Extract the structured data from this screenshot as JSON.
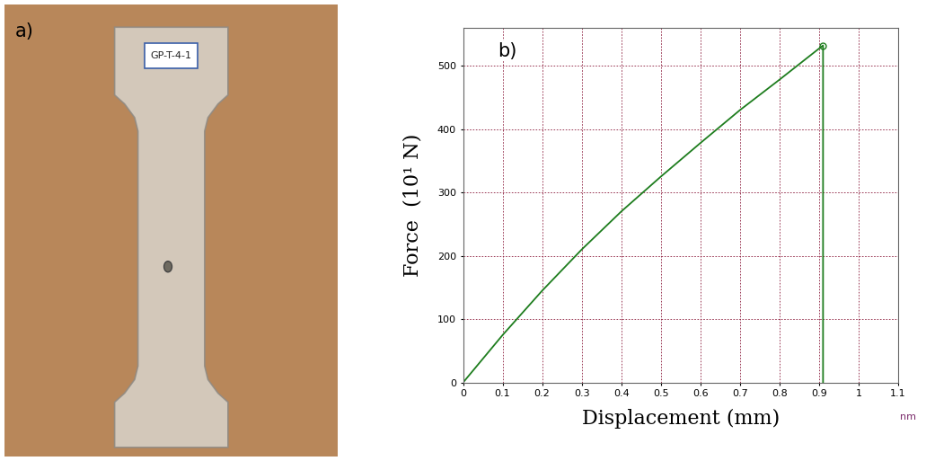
{
  "panel_a": {
    "label": "a)",
    "specimen_tag": "GP-T-4-1"
  },
  "chart_data": {
    "type": "line",
    "label": "b)",
    "x_label": "Displacement (mm)",
    "y_label": "Force  (10¹ N)",
    "axis_unit": "nm",
    "x": [
      0,
      0.1,
      0.2,
      0.3,
      0.4,
      0.5,
      0.6,
      0.7,
      0.8,
      0.91,
      0.91
    ],
    "values": [
      0,
      75,
      145,
      210,
      270,
      325,
      378,
      430,
      478,
      532,
      0
    ],
    "peak": {
      "x": 0.91,
      "value": 532
    },
    "color": "#1e7d1e",
    "xlim": [
      0,
      1.1
    ],
    "xticks": [
      0,
      0.1,
      0.2,
      0.3,
      0.4,
      0.5,
      0.6,
      0.7,
      0.8,
      0.9,
      1,
      1.1
    ],
    "ylim": [
      0,
      560
    ],
    "yticks": [
      0,
      100,
      200,
      300,
      400,
      500
    ],
    "grid": true
  }
}
